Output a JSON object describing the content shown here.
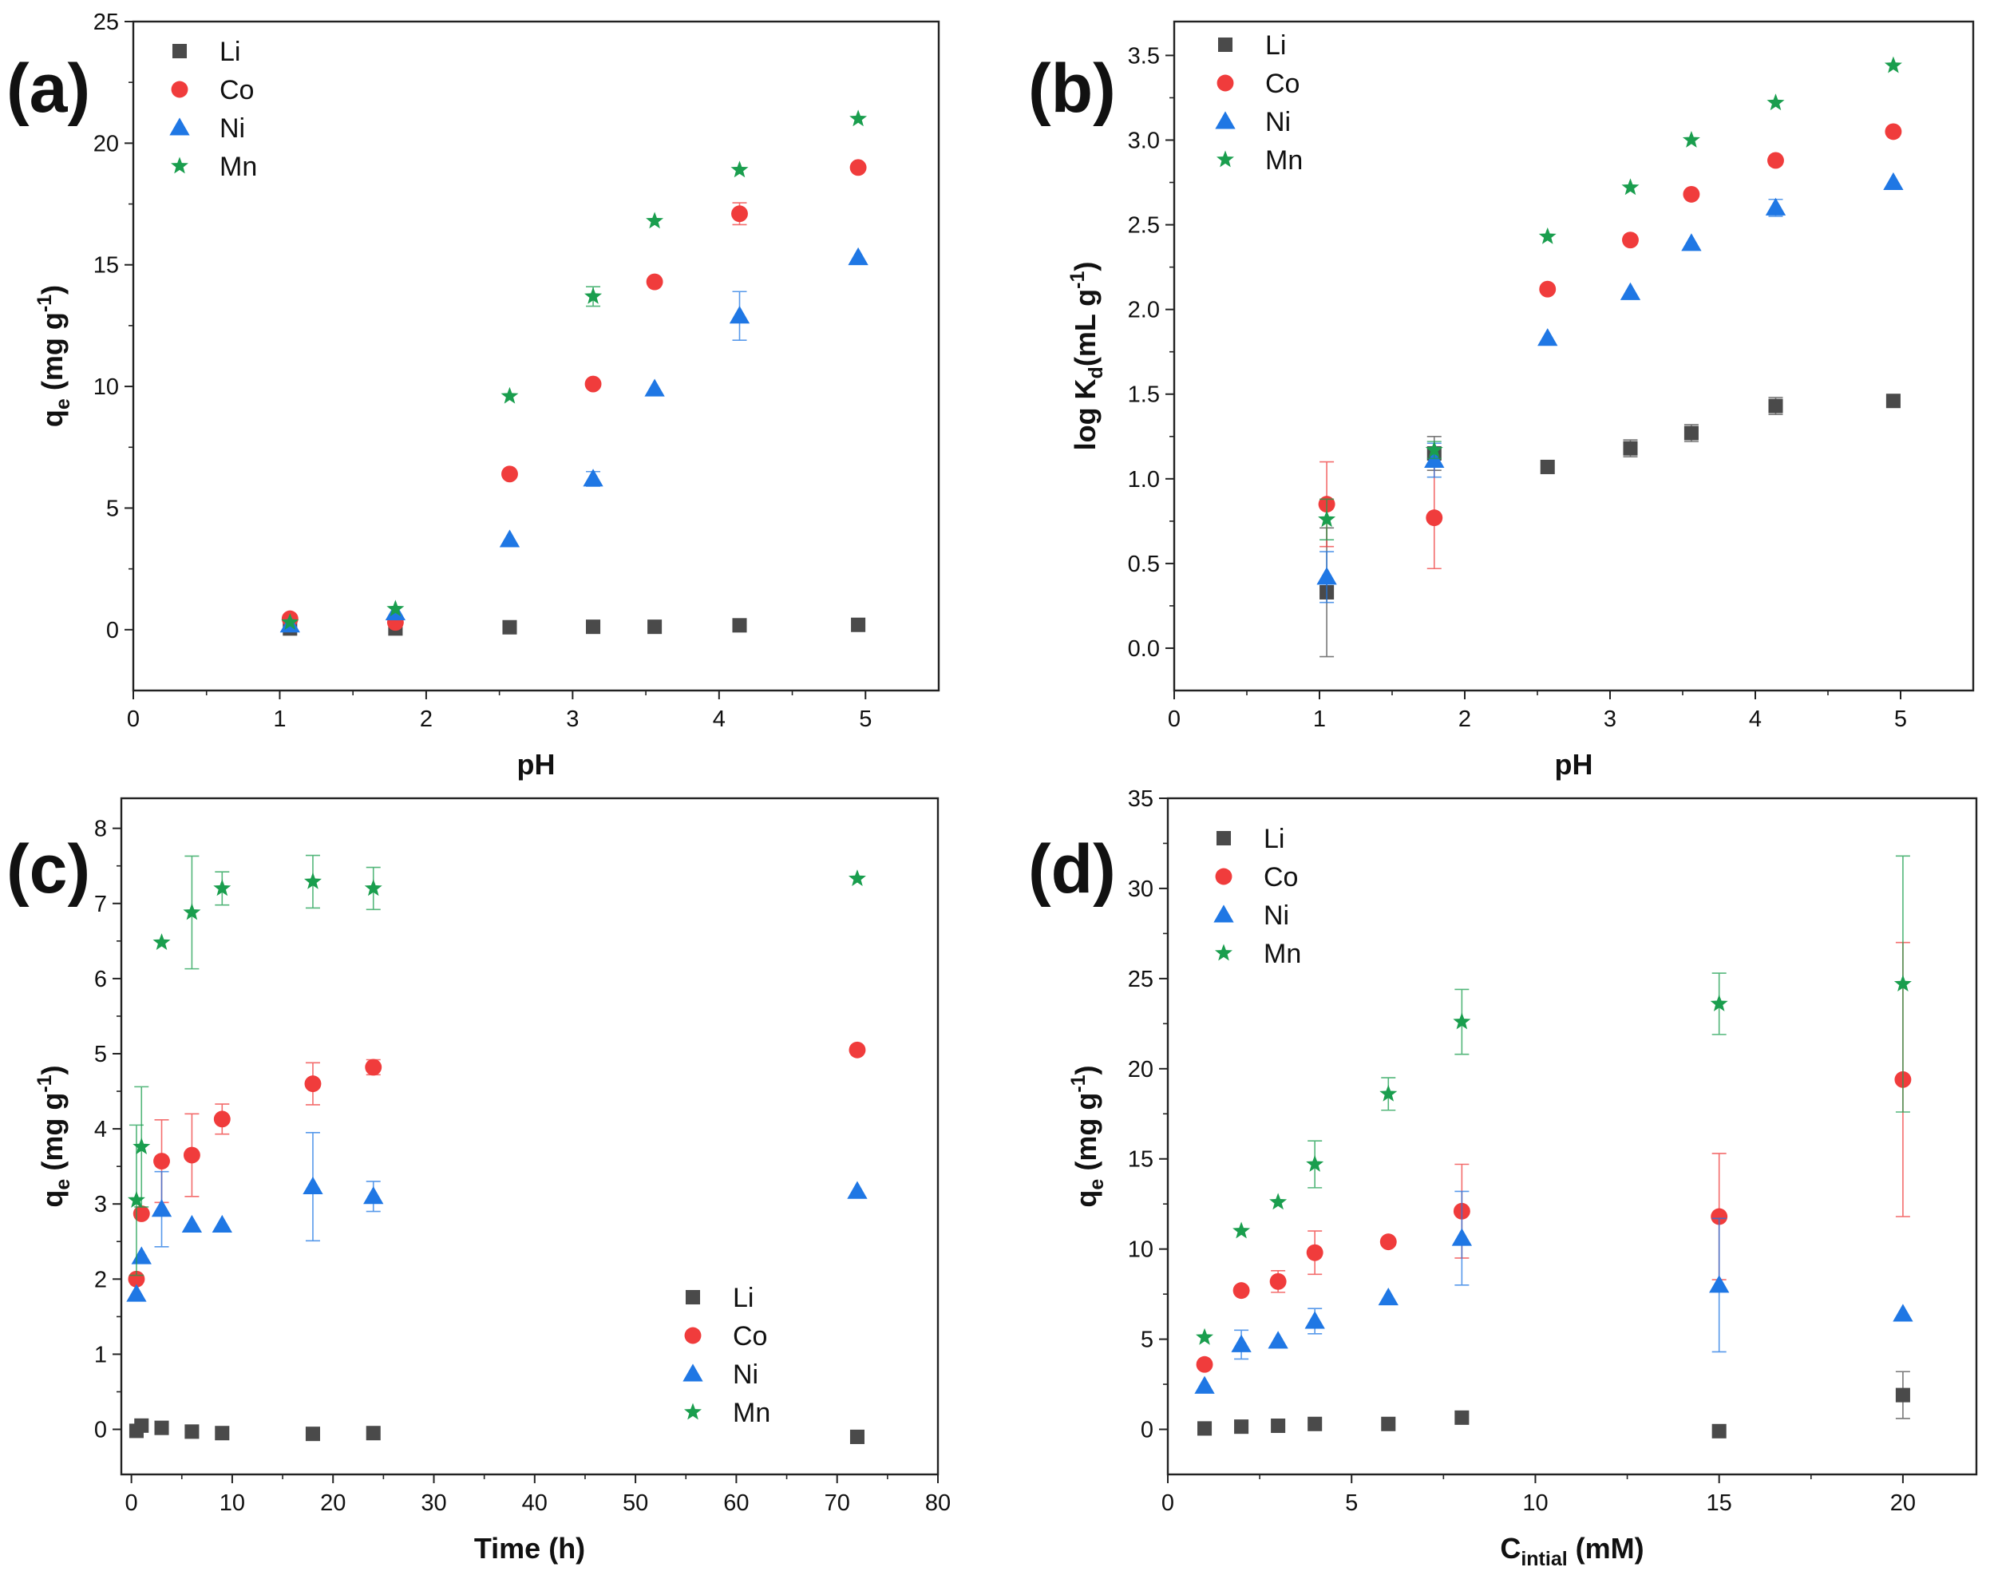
{
  "chart_data": [
    {
      "id": "a",
      "type": "scatter",
      "panel_label": "(a)",
      "xlabel": "pH",
      "ylabel": {
        "main": "q",
        "sub": "e",
        "unit": " (mg g",
        "sup": "-1",
        "close": ")"
      },
      "xlim": [
        0,
        5.5
      ],
      "ylim": [
        -2.5,
        25
      ],
      "xticks": [
        0,
        1,
        2,
        3,
        4,
        5
      ],
      "yticks": [
        0,
        5,
        10,
        15,
        20,
        25
      ],
      "legend_position": "top-left",
      "series": [
        {
          "name": "Li",
          "marker": "square",
          "color": "#4a4a4a",
          "points": [
            [
              1.07,
              0.05,
              0
            ],
            [
              1.79,
              0.05,
              0
            ],
            [
              2.57,
              0.1,
              0
            ],
            [
              3.14,
              0.12,
              0
            ],
            [
              3.56,
              0.12,
              0
            ],
            [
              4.14,
              0.18,
              0
            ],
            [
              4.95,
              0.2,
              0
            ]
          ]
        },
        {
          "name": "Co",
          "marker": "circle",
          "color": "#f03c3c",
          "points": [
            [
              1.07,
              0.45,
              0
            ],
            [
              1.79,
              0.3,
              0
            ],
            [
              2.57,
              6.4,
              0
            ],
            [
              3.14,
              10.1,
              0
            ],
            [
              3.56,
              14.3,
              0
            ],
            [
              4.14,
              17.1,
              0.45
            ],
            [
              4.95,
              19.0,
              0
            ]
          ]
        },
        {
          "name": "Ni",
          "marker": "triangle",
          "color": "#1f77e4",
          "points": [
            [
              1.07,
              0.2,
              0
            ],
            [
              1.79,
              0.7,
              0
            ],
            [
              2.57,
              3.7,
              0
            ],
            [
              3.14,
              6.2,
              0.3
            ],
            [
              3.56,
              9.9,
              0
            ],
            [
              4.14,
              12.9,
              1.0
            ],
            [
              4.95,
              15.3,
              0
            ]
          ]
        },
        {
          "name": "Mn",
          "marker": "star",
          "color": "#1a9e4e",
          "points": [
            [
              1.07,
              0.3,
              0
            ],
            [
              1.79,
              0.85,
              0
            ],
            [
              2.57,
              9.6,
              0
            ],
            [
              3.14,
              13.7,
              0.4
            ],
            [
              3.56,
              16.8,
              0
            ],
            [
              4.14,
              18.9,
              0
            ],
            [
              4.95,
              21.0,
              0
            ]
          ]
        }
      ]
    },
    {
      "id": "b",
      "type": "scatter",
      "panel_label": "(b)",
      "xlabel": "pH",
      "ylabel": {
        "main": "log K",
        "sub": "d",
        "unit": "(mL g",
        "sup": "-1",
        "close": ")"
      },
      "xlim": [
        0,
        5.5
      ],
      "ylim": [
        -0.25,
        3.7
      ],
      "xticks": [
        0,
        1,
        2,
        3,
        4,
        5
      ],
      "yticks": [
        0.0,
        0.5,
        1.0,
        1.5,
        2.0,
        2.5,
        3.0,
        3.5
      ],
      "legend_position": "top-left",
      "series": [
        {
          "name": "Li",
          "marker": "square",
          "color": "#4a4a4a",
          "points": [
            [
              1.05,
              0.33,
              0.38
            ],
            [
              1.79,
              1.15,
              0.1
            ],
            [
              2.57,
              1.07,
              0
            ],
            [
              3.14,
              1.18,
              0.05
            ],
            [
              3.56,
              1.27,
              0.05
            ],
            [
              4.14,
              1.43,
              0.05
            ],
            [
              4.95,
              1.46,
              0
            ]
          ]
        },
        {
          "name": "Co",
          "marker": "circle",
          "color": "#f03c3c",
          "points": [
            [
              1.05,
              0.85,
              0.25
            ],
            [
              1.79,
              0.77,
              0.3
            ],
            [
              2.57,
              2.12,
              0
            ],
            [
              3.14,
              2.41,
              0
            ],
            [
              3.56,
              2.68,
              0
            ],
            [
              4.14,
              2.88,
              0
            ],
            [
              4.95,
              3.05,
              0
            ]
          ]
        },
        {
          "name": "Ni",
          "marker": "triangle",
          "color": "#1f77e4",
          "points": [
            [
              1.05,
              0.42,
              0.15
            ],
            [
              1.79,
              1.11,
              0.1
            ],
            [
              2.57,
              1.83,
              0
            ],
            [
              3.14,
              2.1,
              0
            ],
            [
              3.56,
              2.39,
              0
            ],
            [
              4.14,
              2.6,
              0.05
            ],
            [
              4.95,
              2.75,
              0
            ]
          ]
        },
        {
          "name": "Mn",
          "marker": "star",
          "color": "#1a9e4e",
          "points": [
            [
              1.05,
              0.76,
              0.12
            ],
            [
              1.79,
              1.17,
              0.05
            ],
            [
              2.57,
              2.43,
              0
            ],
            [
              3.14,
              2.72,
              0
            ],
            [
              3.56,
              3.0,
              0
            ],
            [
              4.14,
              3.22,
              0
            ],
            [
              4.95,
              3.44,
              0
            ]
          ]
        }
      ]
    },
    {
      "id": "c",
      "type": "scatter",
      "panel_label": "(c)",
      "xlabel": "Time (h)",
      "ylabel": {
        "main": "q",
        "sub": "e",
        "unit": " (mg g",
        "sup": "-1",
        "close": ")"
      },
      "xlim": [
        -1,
        80
      ],
      "ylim": [
        -0.6,
        8.4
      ],
      "xticks": [
        0,
        10,
        20,
        30,
        40,
        50,
        60,
        70,
        80
      ],
      "yticks": [
        0,
        1,
        2,
        3,
        4,
        5,
        6,
        7,
        8
      ],
      "legend_position": "bottom-right",
      "series": [
        {
          "name": "Li",
          "marker": "square",
          "color": "#4a4a4a",
          "points": [
            [
              0.5,
              -0.02,
              0
            ],
            [
              1,
              0.05,
              0
            ],
            [
              3,
              0.02,
              0
            ],
            [
              6,
              -0.03,
              0
            ],
            [
              9,
              -0.05,
              0
            ],
            [
              18,
              -0.06,
              0
            ],
            [
              24,
              -0.05,
              0
            ],
            [
              72,
              -0.1,
              0
            ]
          ]
        },
        {
          "name": "Co",
          "marker": "circle",
          "color": "#f03c3c",
          "points": [
            [
              0.5,
              2.0,
              0
            ],
            [
              1,
              2.87,
              0
            ],
            [
              3,
              3.57,
              0.55
            ],
            [
              6,
              3.65,
              0.55
            ],
            [
              9,
              4.13,
              0.2
            ],
            [
              18,
              4.6,
              0.28
            ],
            [
              24,
              4.82,
              0.1
            ],
            [
              72,
              5.05,
              0
            ]
          ]
        },
        {
          "name": "Ni",
          "marker": "triangle",
          "color": "#1f77e4",
          "points": [
            [
              0.5,
              1.8,
              0
            ],
            [
              1,
              2.3,
              0
            ],
            [
              3,
              2.93,
              0.5
            ],
            [
              6,
              2.72,
              0
            ],
            [
              9,
              2.72,
              0
            ],
            [
              18,
              3.23,
              0.72
            ],
            [
              24,
              3.1,
              0.2
            ],
            [
              72,
              3.17,
              0
            ]
          ]
        },
        {
          "name": "Mn",
          "marker": "star",
          "color": "#1a9e4e",
          "points": [
            [
              0.5,
              3.05,
              1.0
            ],
            [
              1,
              3.76,
              0.8
            ],
            [
              3,
              6.48,
              0
            ],
            [
              6,
              6.88,
              0.75
            ],
            [
              9,
              7.2,
              0.22
            ],
            [
              18,
              7.29,
              0.35
            ],
            [
              24,
              7.2,
              0.28
            ],
            [
              72,
              7.33,
              0
            ]
          ]
        }
      ]
    },
    {
      "id": "d",
      "type": "scatter",
      "panel_label": "(d)",
      "xlabel": {
        "main": "C",
        "sub": "intial",
        "unit": " (mM)"
      },
      "ylabel": {
        "main": "q",
        "sub": "e",
        "unit": " (mg g",
        "sup": "-1",
        "close": ")"
      },
      "xlim": [
        0,
        22
      ],
      "ylim": [
        -2.5,
        35
      ],
      "xticks": [
        0,
        5,
        10,
        15,
        20
      ],
      "yticks": [
        0,
        5,
        10,
        15,
        20,
        25,
        30,
        35
      ],
      "legend_position": "top-left",
      "series": [
        {
          "name": "Li",
          "marker": "square",
          "color": "#4a4a4a",
          "points": [
            [
              1,
              0.05,
              0
            ],
            [
              2,
              0.15,
              0
            ],
            [
              3,
              0.2,
              0
            ],
            [
              4,
              0.3,
              0
            ],
            [
              6,
              0.3,
              0
            ],
            [
              8,
              0.65,
              0
            ],
            [
              15,
              -0.1,
              0
            ],
            [
              20,
              1.9,
              1.3
            ]
          ]
        },
        {
          "name": "Co",
          "marker": "circle",
          "color": "#f03c3c",
          "points": [
            [
              1,
              3.6,
              0
            ],
            [
              2,
              7.7,
              0
            ],
            [
              3,
              8.2,
              0.6
            ],
            [
              4,
              9.8,
              1.2
            ],
            [
              6,
              10.4,
              0
            ],
            [
              8,
              12.1,
              2.6
            ],
            [
              15,
              11.8,
              3.5
            ],
            [
              20,
              19.4,
              7.6
            ]
          ]
        },
        {
          "name": "Ni",
          "marker": "triangle",
          "color": "#1f77e4",
          "points": [
            [
              1,
              2.4,
              0
            ],
            [
              2,
              4.7,
              0.8
            ],
            [
              3,
              4.9,
              0
            ],
            [
              4,
              6.0,
              0.7
            ],
            [
              6,
              7.3,
              0
            ],
            [
              8,
              10.6,
              2.6
            ],
            [
              15,
              8.0,
              3.7
            ],
            [
              20,
              6.4,
              0
            ]
          ]
        },
        {
          "name": "Mn",
          "marker": "star",
          "color": "#1a9e4e",
          "points": [
            [
              1,
              5.1,
              0
            ],
            [
              2,
              11.0,
              0
            ],
            [
              3,
              12.6,
              0
            ],
            [
              4,
              14.7,
              1.3
            ],
            [
              6,
              18.6,
              0.9
            ],
            [
              8,
              22.6,
              1.8
            ],
            [
              15,
              23.6,
              1.7
            ],
            [
              20,
              24.7,
              7.1
            ]
          ]
        }
      ]
    }
  ]
}
